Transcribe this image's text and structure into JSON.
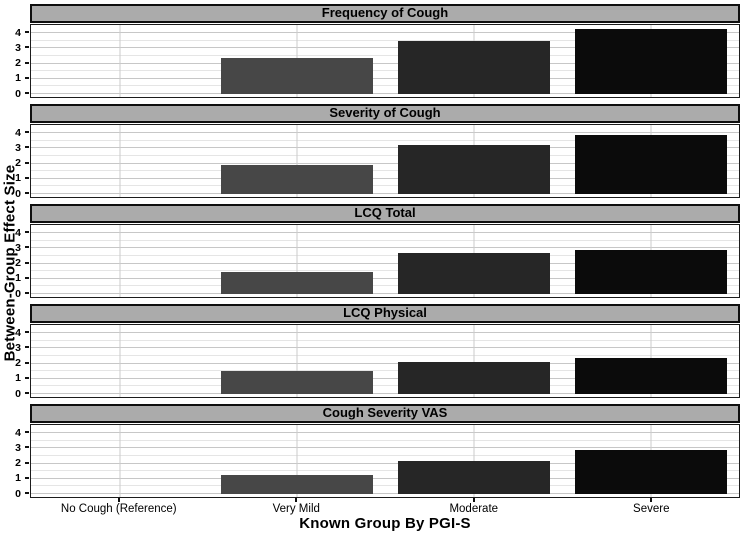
{
  "chart_data": {
    "type": "bar",
    "title": "",
    "xlabel": "Known Group By PGI-S",
    "ylabel": "Between-Group Effect Size",
    "categories": [
      "No Cough (Reference)",
      "Very Mild",
      "Moderate",
      "Severe"
    ],
    "ylim": [
      0,
      4.5
    ],
    "yticks": [
      4,
      3,
      2,
      1,
      0
    ],
    "grid": {
      "horizontal_major_step": 1,
      "horizontal_minor_step": 0.5,
      "vertical": "at category centers"
    },
    "legend": "none",
    "facets": [
      {
        "title": "Frequency of Cough",
        "values": [
          0,
          2.35,
          3.5,
          4.3
        ]
      },
      {
        "title": "Severity of Cough",
        "values": [
          0,
          1.9,
          3.2,
          3.9
        ]
      },
      {
        "title": "LCQ Total",
        "values": [
          0,
          1.45,
          2.7,
          2.9
        ]
      },
      {
        "title": "LCQ Physical",
        "values": [
          0,
          1.5,
          2.1,
          2.4
        ]
      },
      {
        "title": "Cough Severity VAS",
        "values": [
          0,
          1.25,
          2.2,
          2.9
        ]
      }
    ],
    "bar_colors_by_category": [
      "none",
      "#474747",
      "#262626",
      "#0b0b0b"
    ]
  },
  "colors": {
    "strip_background": "#ababab",
    "panel_border": "#1c1c1c",
    "strip_border": "#0f0f0f",
    "grid_major": "#c7c7c7",
    "grid_minor": "#e5e5e5",
    "background": "#ffffff",
    "text": "#000000"
  }
}
